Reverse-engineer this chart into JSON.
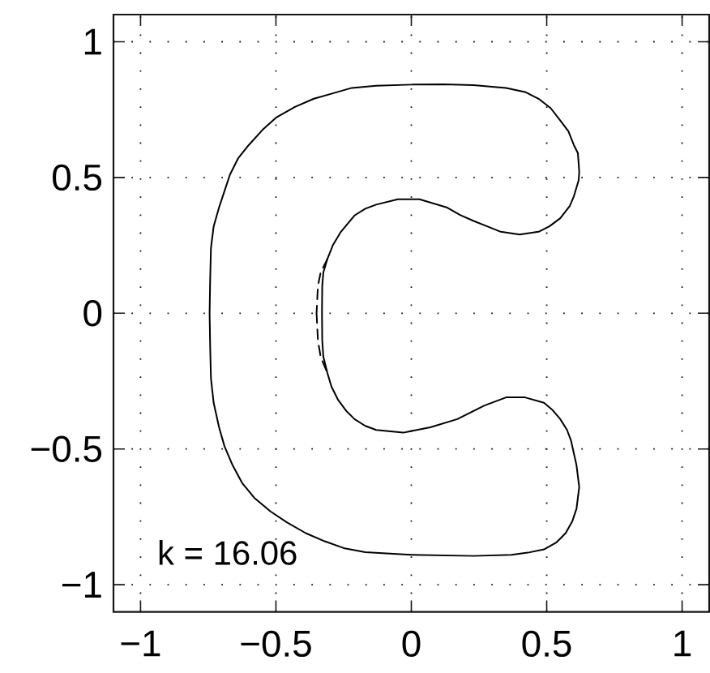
{
  "chart_data": {
    "type": "line",
    "xlim": [
      -1.1,
      1.1
    ],
    "ylim": [
      -1.1,
      1.1
    ],
    "xticks": [
      {
        "value": -1,
        "label": "−1"
      },
      {
        "value": -0.5,
        "label": "−0.5"
      },
      0,
      0.5,
      1
    ],
    "yticks": [
      {
        "value": -1,
        "label": "−1"
      },
      {
        "value": -0.5,
        "label": "−0.5"
      },
      0,
      0.5,
      1
    ],
    "grid": true,
    "annotations": [
      "k = 16.06"
    ],
    "series": [
      {
        "color": "#000000",
        "line_style": "solid",
        "x": [
          -0.745,
          -0.743,
          -0.74,
          -0.73,
          -0.71,
          -0.69,
          -0.67,
          -0.64,
          -0.6,
          -0.55,
          -0.5,
          -0.43,
          -0.36,
          -0.29,
          -0.22,
          -0.13,
          0.0,
          0.12,
          0.23,
          0.35,
          0.42,
          0.47,
          0.515,
          0.55,
          0.58,
          0.6,
          0.615,
          0.618,
          0.62,
          null,
          0.62,
          0.618,
          0.6,
          0.585,
          0.55,
          0.51,
          0.47,
          0.4,
          0.33,
          0.28,
          0.23,
          0.18,
          0.13,
          0.03,
          -0.05,
          -0.13,
          -0.17,
          -0.21,
          -0.235,
          -0.26,
          -0.29,
          -0.31,
          -0.325,
          -0.329,
          -0.33,
          null,
          -0.33,
          -0.329,
          -0.325,
          -0.31,
          -0.295,
          -0.27,
          -0.24,
          -0.21,
          -0.17,
          -0.13,
          -0.03,
          0.07,
          0.17,
          0.27,
          0.35,
          0.42,
          0.49,
          0.52,
          0.55,
          0.575,
          0.59,
          0.61,
          0.62,
          null,
          0.62,
          0.61,
          0.595,
          0.57,
          0.535,
          0.49,
          0.43,
          0.37,
          0.23,
          0.0,
          -0.17,
          -0.25,
          -0.32,
          -0.39,
          -0.46,
          -0.52,
          -0.58,
          -0.625,
          -0.66,
          -0.69,
          -0.71,
          -0.73,
          -0.74,
          -0.743,
          -0.745
        ],
        "values": [
          0.0,
          0.12,
          0.24,
          0.32,
          0.39,
          0.45,
          0.51,
          0.57,
          0.62,
          0.675,
          0.72,
          0.76,
          0.79,
          0.81,
          0.83,
          0.838,
          0.842,
          0.843,
          0.84,
          0.83,
          0.815,
          0.79,
          0.755,
          0.71,
          0.67,
          0.62,
          0.59,
          0.55,
          0.52,
          null,
          0.52,
          0.49,
          0.43,
          0.395,
          0.35,
          0.32,
          0.3,
          0.29,
          0.3,
          0.32,
          0.34,
          0.362,
          0.39,
          0.42,
          0.42,
          0.4,
          0.385,
          0.36,
          0.33,
          0.3,
          0.25,
          0.2,
          0.15,
          0.1,
          0.0,
          null,
          0.0,
          -0.1,
          -0.16,
          -0.22,
          -0.27,
          -0.32,
          -0.36,
          -0.39,
          -0.415,
          -0.43,
          -0.44,
          -0.42,
          -0.39,
          -0.34,
          -0.31,
          -0.31,
          -0.33,
          -0.355,
          -0.39,
          -0.43,
          -0.47,
          -0.56,
          -0.64,
          null,
          -0.64,
          -0.72,
          -0.765,
          -0.81,
          -0.845,
          -0.87,
          -0.882,
          -0.89,
          -0.894,
          -0.89,
          -0.88,
          -0.865,
          -0.84,
          -0.81,
          -0.77,
          -0.73,
          -0.68,
          -0.625,
          -0.56,
          -0.49,
          -0.42,
          -0.33,
          -0.24,
          -0.12,
          0.0
        ]
      },
      {
        "color": "#000000",
        "line_style": "dashed",
        "x": [
          -0.31,
          -0.335,
          -0.345,
          -0.35,
          null,
          -0.35,
          -0.345,
          -0.335,
          -0.31
        ],
        "values": [
          0.2,
          0.15,
          0.1,
          0.0,
          null,
          0.0,
          -0.1,
          -0.16,
          -0.22
        ]
      }
    ]
  }
}
